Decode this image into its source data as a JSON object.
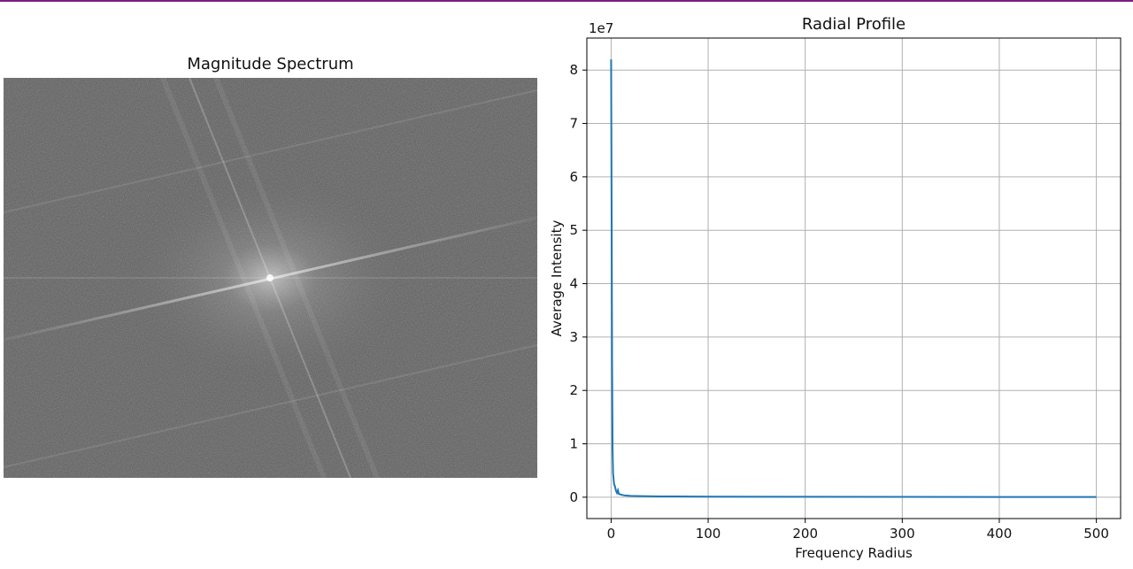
{
  "colors": {
    "top_bar": "#7a1e7f",
    "line": "#1f77b4",
    "grid": "#b0b0b0",
    "spectrum_bg": "#5e5e5e"
  },
  "left_panel": {
    "title": "Magnitude Spectrum"
  },
  "chart_data": {
    "type": "line",
    "title": "Radial Profile",
    "xlabel": "Frequency Radius",
    "ylabel": "Average Intensity",
    "y_offset_label": "1e7",
    "xlim": [
      -25,
      525
    ],
    "ylim": [
      -0.4,
      8.6
    ],
    "xticks": [
      0,
      100,
      200,
      300,
      400,
      500
    ],
    "yticks": [
      0,
      1,
      2,
      3,
      4,
      5,
      6,
      7,
      8
    ],
    "grid": true,
    "series": [
      {
        "x": [
          0,
          0.5,
          1,
          1.5,
          2,
          3,
          4,
          5,
          6,
          7,
          8,
          10,
          12,
          15,
          20,
          30,
          50,
          100,
          200,
          300,
          400,
          500
        ],
        "y": [
          8.2,
          5.5,
          2.5,
          0.9,
          0.45,
          0.25,
          0.2,
          0.12,
          0.08,
          0.13,
          0.06,
          0.05,
          0.04,
          0.03,
          0.025,
          0.02,
          0.015,
          0.01,
          0.008,
          0.006,
          0.005,
          0.004
        ]
      }
    ]
  }
}
